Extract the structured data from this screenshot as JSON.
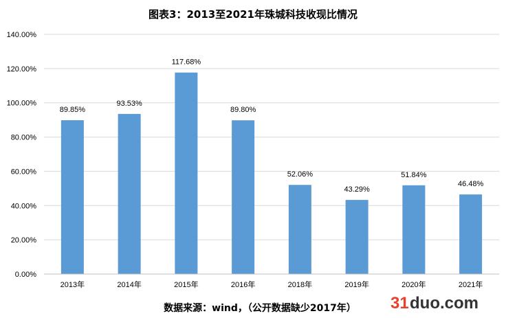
{
  "chart_data": {
    "type": "bar",
    "title": "图表3：2013至2021年珠城科技收现比情况",
    "categories": [
      "2013年",
      "2014年",
      "2015年",
      "2016年",
      "2018年",
      "2019年",
      "2020年",
      "2021年"
    ],
    "values": [
      89.85,
      93.53,
      117.68,
      89.8,
      52.06,
      43.29,
      51.84,
      46.48
    ],
    "value_labels": [
      "89.85%",
      "93.53%",
      "117.68%",
      "89.80%",
      "52.06%",
      "43.29%",
      "51.84%",
      "46.48%"
    ],
    "ylim": [
      0,
      140
    ],
    "y_ticks": [
      "0.00%",
      "20.00%",
      "40.00%",
      "60.00%",
      "80.00%",
      "100.00%",
      "120.00%",
      "140.00%"
    ],
    "grid": true,
    "legend": "none",
    "bar_color": "#5b9bd5"
  },
  "footer": {
    "source": "数据来源：wind，（公开数据缺少2017年）"
  },
  "watermark": {
    "text_red": "31",
    "text_dark": "duo.com"
  }
}
